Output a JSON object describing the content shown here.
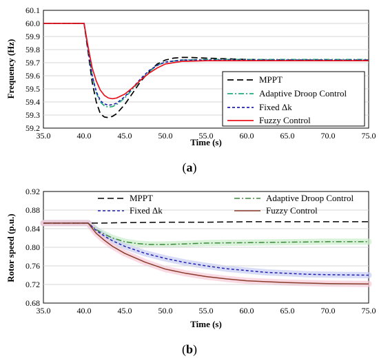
{
  "chart_data": [
    {
      "type": "line",
      "panel_label": "a",
      "xlabel": "Time (s)",
      "ylabel": "Frequency (Hz)",
      "xlim": [
        35.0,
        75.0
      ],
      "ylim": [
        59.2,
        60.1
      ],
      "x_ticks": [
        "35.0",
        "40.0",
        "45.0",
        "50.0",
        "55.0",
        "60.0",
        "65.0",
        "70.0",
        "75.0"
      ],
      "y_ticks": [
        "59.2",
        "59.3",
        "59.4",
        "59.5",
        "59.6",
        "59.7",
        "59.8",
        "59.9",
        "60.0",
        "60.1"
      ],
      "grid": "horizontal",
      "legend_position": "bottom-right",
      "series": [
        {
          "name": "MPPT",
          "color": "#000000",
          "dash": "long-dash",
          "x": [
            35,
            40,
            40.5,
            41,
            41.5,
            42,
            42.5,
            43,
            43.5,
            44,
            45,
            46,
            47,
            48,
            49,
            50,
            51,
            52,
            53,
            55,
            60,
            65,
            70,
            75
          ],
          "y": [
            60.0,
            60.0,
            59.78,
            59.55,
            59.4,
            59.31,
            59.285,
            59.28,
            59.29,
            59.31,
            59.38,
            59.47,
            59.56,
            59.63,
            59.69,
            59.72,
            59.735,
            59.74,
            59.74,
            59.735,
            59.725,
            59.72,
            59.72,
            59.72
          ]
        },
        {
          "name": "Adaptive Droop Control",
          "color": "#22aa7a",
          "dash": "dash-dot",
          "x": [
            35,
            40,
            40.5,
            41,
            41.5,
            42,
            42.5,
            43,
            43.5,
            44,
            45,
            46,
            47,
            48,
            49,
            50,
            52,
            55,
            60,
            65,
            70,
            75
          ],
          "y": [
            60.0,
            60.0,
            59.8,
            59.6,
            59.47,
            59.4,
            59.37,
            59.36,
            59.365,
            59.38,
            59.43,
            59.5,
            59.57,
            59.63,
            59.68,
            59.705,
            59.72,
            59.725,
            59.725,
            59.725,
            59.725,
            59.725
          ]
        },
        {
          "name": "Fixed Δk",
          "color": "#1f1fb0",
          "dash": "short-dash",
          "x": [
            35,
            40,
            40.5,
            41,
            41.5,
            42,
            42.5,
            43,
            43.5,
            44,
            45,
            46,
            47,
            48,
            49,
            50,
            52,
            55,
            60,
            65,
            70,
            75
          ],
          "y": [
            60.0,
            60.0,
            59.8,
            59.6,
            59.48,
            59.41,
            59.385,
            59.375,
            59.38,
            59.39,
            59.44,
            59.51,
            59.58,
            59.64,
            59.68,
            59.705,
            59.72,
            59.72,
            59.72,
            59.72,
            59.72,
            59.72
          ]
        },
        {
          "name": "Fuzzy Control",
          "color": "#e8131b",
          "dash": "solid",
          "x": [
            35,
            40,
            40.5,
            41,
            41.5,
            42,
            42.5,
            43,
            43.5,
            44,
            45,
            46,
            47,
            48,
            49,
            50,
            52,
            55,
            60,
            65,
            70,
            75
          ],
          "y": [
            60.0,
            60.0,
            59.82,
            59.66,
            59.56,
            59.49,
            59.45,
            59.43,
            59.425,
            59.43,
            59.46,
            59.51,
            59.57,
            59.62,
            59.66,
            59.69,
            59.71,
            59.715,
            59.715,
            59.715,
            59.715,
            59.715
          ]
        }
      ]
    },
    {
      "type": "line",
      "panel_label": "b",
      "xlabel": "Time (s)",
      "ylabel": "Rotor speed (p.u.)",
      "xlim": [
        35.0,
        75.0
      ],
      "ylim": [
        0.68,
        0.92
      ],
      "x_ticks": [
        "35.0",
        "40.0",
        "45.0",
        "50.0",
        "55.0",
        "60.0",
        "65.0",
        "70.0",
        "75.0"
      ],
      "y_ticks": [
        "0.68",
        "0.72",
        "0.76",
        "0.80",
        "0.84",
        "0.88",
        "0.92"
      ],
      "grid": "horizontal",
      "legend_position": "top",
      "series": [
        {
          "name": "MPPT",
          "color": "#000000",
          "dash": "long-dash",
          "x": [
            35,
            40.5,
            42,
            45,
            50,
            55,
            60,
            65,
            70,
            75
          ],
          "y": [
            0.852,
            0.852,
            0.852,
            0.853,
            0.854,
            0.854,
            0.855,
            0.855,
            0.855,
            0.855
          ]
        },
        {
          "name": "Adaptive Droop Control",
          "color": "#3a8a3a",
          "dash": "dash-dot",
          "x": [
            35,
            40.5,
            41.5,
            42.5,
            43.5,
            45,
            46.5,
            48,
            50,
            52,
            55,
            60,
            65,
            70,
            75
          ],
          "y": [
            0.852,
            0.852,
            0.838,
            0.828,
            0.82,
            0.812,
            0.808,
            0.806,
            0.806,
            0.807,
            0.809,
            0.81,
            0.811,
            0.812,
            0.812
          ],
          "shade_color": "#c9ecc9"
        },
        {
          "name": "Fixed Δk",
          "color": "#1f1fb0",
          "dash": "short-dash",
          "x": [
            35,
            40.5,
            41.5,
            42.5,
            43.5,
            45,
            47.5,
            50,
            52.5,
            55,
            57.5,
            60,
            62.5,
            65,
            67.5,
            70,
            75
          ],
          "y": [
            0.852,
            0.852,
            0.836,
            0.824,
            0.814,
            0.802,
            0.787,
            0.776,
            0.767,
            0.76,
            0.754,
            0.75,
            0.746,
            0.744,
            0.742,
            0.741,
            0.74
          ],
          "shade_color": "#c7cdf2"
        },
        {
          "name": "Fuzzy Control",
          "color": "#8b3a2a",
          "dash": "solid",
          "x": [
            35,
            40.5,
            41.5,
            42.5,
            43.5,
            45,
            47.5,
            50,
            52.5,
            55,
            57.5,
            60,
            62.5,
            65,
            67.5,
            70,
            75
          ],
          "y": [
            0.852,
            0.852,
            0.83,
            0.815,
            0.802,
            0.787,
            0.768,
            0.753,
            0.744,
            0.737,
            0.732,
            0.728,
            0.726,
            0.724,
            0.723,
            0.722,
            0.721
          ],
          "shade_color": "#f6c9d6"
        }
      ]
    }
  ]
}
